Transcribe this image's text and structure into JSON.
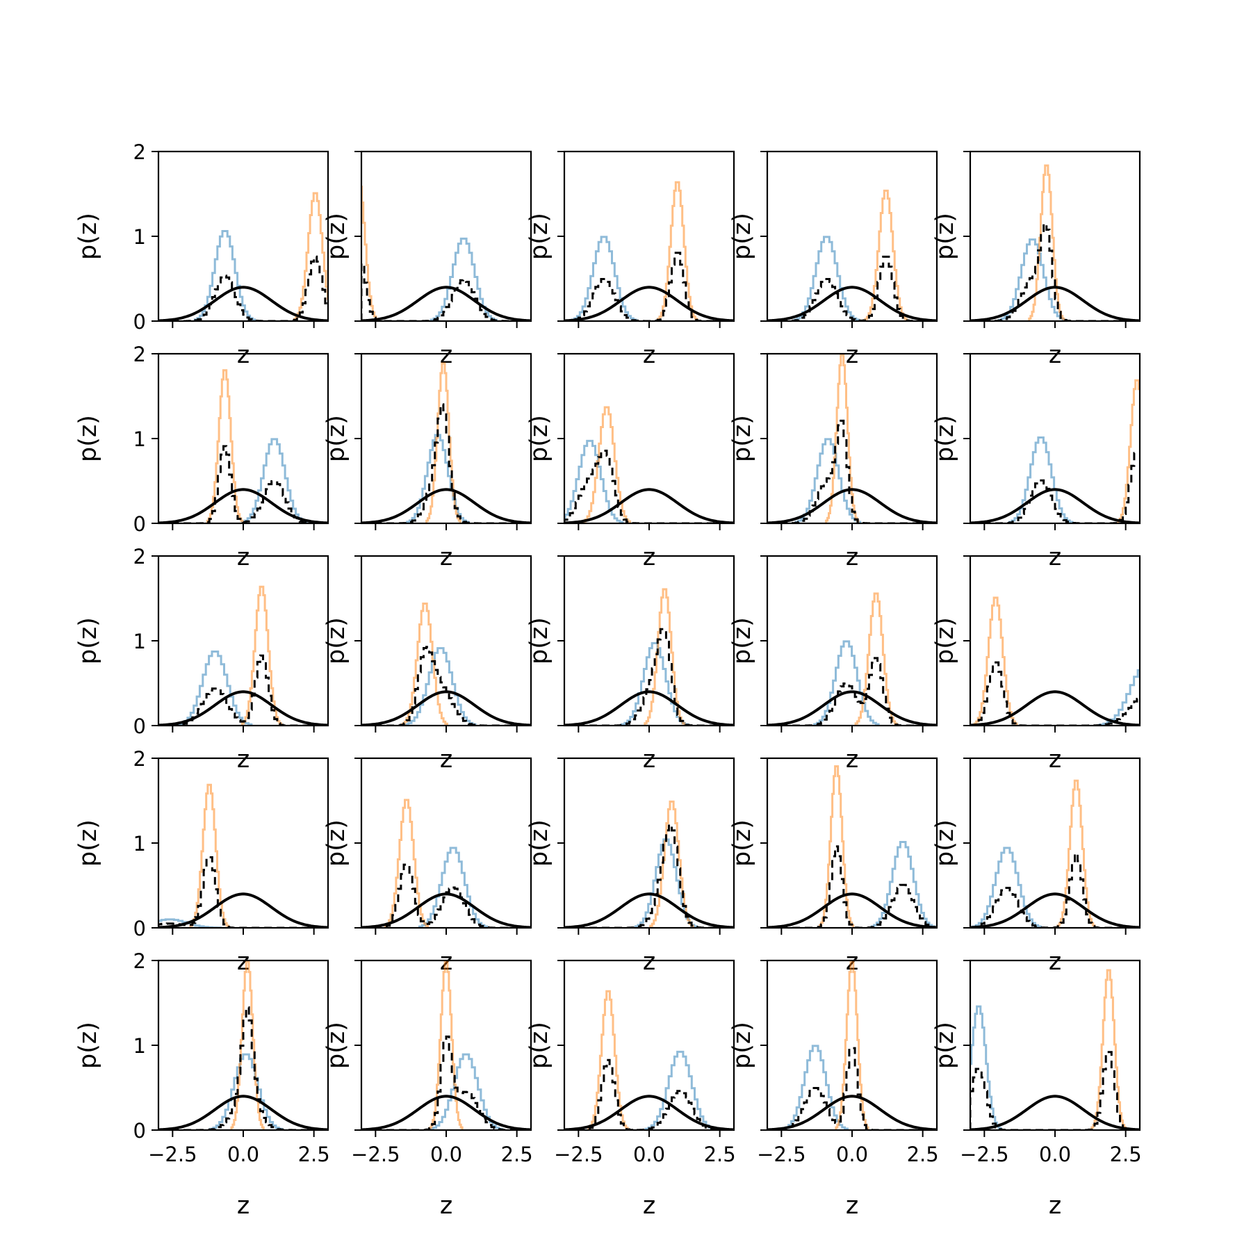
{
  "chart_data": {
    "type": "grid-of-histograms",
    "rows": 5,
    "cols": 5,
    "xlim": [
      -3,
      3
    ],
    "ylim": [
      0,
      2
    ],
    "xticks": [
      -2.5,
      0.0,
      2.5
    ],
    "xtick_labels": [
      "−2.5",
      "0.0",
      "2.5"
    ],
    "yticks": [
      0,
      1,
      2
    ],
    "ytick_labels": [
      "0",
      "1",
      "2"
    ],
    "xlabel": "z",
    "ylabel": "p(z)",
    "grid": false,
    "legend": "none",
    "reference_curve": {
      "kind": "standard-normal-pdf",
      "mean": 0,
      "sd": 1,
      "peak": 0.399
    },
    "colors": {
      "blue": "#1f77b4",
      "orange": "#ff7f0e",
      "combined": "#000000",
      "reference": "#000000"
    },
    "panels": [
      {
        "blue": {
          "mu": -0.65,
          "peak": 1.07
        },
        "orange": {
          "mu": 2.55,
          "peak": 1.52
        }
      },
      {
        "blue": {
          "mu": 0.62,
          "peak": 0.98
        },
        "orange": {
          "mu": -3.1,
          "peak": 1.7
        }
      },
      {
        "blue": {
          "mu": -1.6,
          "peak": 1.0
        },
        "orange": {
          "mu": 1.0,
          "peak": 1.65
        }
      },
      {
        "blue": {
          "mu": -0.9,
          "peak": 1.0
        },
        "orange": {
          "mu": 1.2,
          "peak": 1.55
        }
      },
      {
        "blue": {
          "mu": -0.8,
          "peak": 0.97
        },
        "orange": {
          "mu": -0.3,
          "peak": 1.85
        }
      },
      {
        "blue": {
          "mu": 1.1,
          "peak": 1.0
        },
        "orange": {
          "mu": -0.65,
          "peak": 1.82
        }
      },
      {
        "blue": {
          "mu": -0.3,
          "peak": 1.05
        },
        "orange": {
          "mu": -0.1,
          "peak": 1.9
        }
      },
      {
        "blue": {
          "mu": -2.1,
          "peak": 0.98
        },
        "orange": {
          "mu": -1.5,
          "peak": 1.38
        }
      },
      {
        "blue": {
          "mu": -0.85,
          "peak": 1.0
        },
        "orange": {
          "mu": -0.35,
          "peak": 2.0
        }
      },
      {
        "blue": {
          "mu": -0.5,
          "peak": 1.02
        },
        "orange": {
          "mu": 2.9,
          "peak": 1.7
        }
      },
      {
        "blue": {
          "mu": -1.0,
          "peak": 0.88
        },
        "orange": {
          "mu": 0.65,
          "peak": 1.65
        }
      },
      {
        "blue": {
          "mu": -0.2,
          "peak": 0.92
        },
        "orange": {
          "mu": -0.75,
          "peak": 1.45
        }
      },
      {
        "blue": {
          "mu": 0.2,
          "peak": 0.98
        },
        "orange": {
          "mu": 0.55,
          "peak": 1.62
        }
      },
      {
        "blue": {
          "mu": -0.2,
          "peak": 1.0
        },
        "orange": {
          "mu": 0.85,
          "peak": 1.57
        }
      },
      {
        "blue": {
          "mu": 3.2,
          "peak": 0.7
        },
        "orange": {
          "mu": -2.1,
          "peak": 1.52
        }
      },
      {
        "blue": {
          "mu": -2.6,
          "peak": 0.1
        },
        "orange": {
          "mu": -1.2,
          "peak": 1.7
        }
      },
      {
        "blue": {
          "mu": 0.25,
          "peak": 0.95
        },
        "orange": {
          "mu": -1.4,
          "peak": 1.52
        }
      },
      {
        "blue": {
          "mu": 0.6,
          "peak": 1.05
        },
        "orange": {
          "mu": 0.8,
          "peak": 1.5
        }
      },
      {
        "blue": {
          "mu": 1.8,
          "peak": 1.02
        },
        "orange": {
          "mu": -0.55,
          "peak": 1.92
        }
      },
      {
        "blue": {
          "mu": -1.7,
          "peak": 0.95
        },
        "orange": {
          "mu": 0.75,
          "peak": 1.75
        }
      },
      {
        "blue": {
          "mu": 0.1,
          "peak": 0.9
        },
        "orange": {
          "mu": 0.15,
          "peak": 2.0
        }
      },
      {
        "blue": {
          "mu": 0.7,
          "peak": 0.9
        },
        "orange": {
          "mu": 0.0,
          "peak": 2.0
        }
      },
      {
        "blue": {
          "mu": 1.1,
          "peak": 0.93
        },
        "orange": {
          "mu": -1.45,
          "peak": 1.65
        }
      },
      {
        "blue": {
          "mu": -1.3,
          "peak": 1.0
        },
        "orange": {
          "mu": 0.0,
          "peak": 2.0
        }
      },
      {
        "blue": {
          "mu": -2.7,
          "peak": 1.47
        },
        "orange": {
          "mu": 1.9,
          "peak": 1.9
        }
      }
    ]
  }
}
